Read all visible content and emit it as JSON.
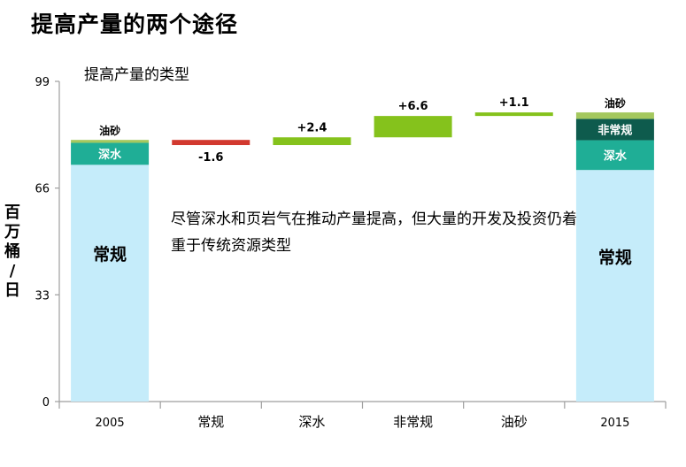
{
  "title": "提高产量的两个途径",
  "colors": {
    "conventional": "#c5ecfa",
    "deepwater": "#1fae96",
    "unconventional": "#0e5b4d",
    "oilsands": "#a4c85e",
    "increase": "#85c21c",
    "decrease": "#d2392f",
    "axis": "#9e9e9e"
  },
  "chart_data": {
    "type": "bar",
    "subtitle": "提高产量的类型",
    "ylabel": "百万桶/日",
    "ylim": [
      0,
      99
    ],
    "yticks": [
      "0",
      "33",
      "66",
      "99"
    ],
    "categories": [
      "2005",
      "常规",
      "深水",
      "非常规",
      "油砂",
      "2015"
    ],
    "stacks": [
      {
        "category": "2005",
        "segments": [
          {
            "name": "常规",
            "value": 73.2,
            "color_key": "conventional",
            "label": "常规"
          },
          {
            "name": "深水",
            "value": 6.8,
            "color_key": "deepwater",
            "label": "深水"
          },
          {
            "name": "油砂",
            "value": 0.9,
            "color_key": "oilsands",
            "label": "油砂"
          }
        ]
      },
      {
        "category": "2015",
        "segments": [
          {
            "name": "常规",
            "value": 71.6,
            "color_key": "conventional",
            "label": "常规"
          },
          {
            "name": "深水",
            "value": 9.2,
            "color_key": "deepwater",
            "label": "深水"
          },
          {
            "name": "非常规",
            "value": 6.6,
            "color_key": "unconventional",
            "label": "非常规"
          },
          {
            "name": "油砂",
            "value": 2.0,
            "color_key": "oilsands",
            "label": "油砂"
          }
        ]
      }
    ],
    "changes": [
      {
        "category": "常规",
        "value": -1.6,
        "label": "-1.6",
        "start": 80.9
      },
      {
        "category": "深水",
        "value": 2.4,
        "label": "+2.4",
        "start": 79.3
      },
      {
        "category": "非常规",
        "value": 6.6,
        "label": "+6.6",
        "start": 81.7
      },
      {
        "category": "油砂",
        "value": 1.1,
        "label": "+1.1",
        "start": 88.3
      }
    ],
    "annotation": "尽管深水和页岩气在推动产量提高，但大量的开发及投资仍着重于传统资源类型"
  }
}
